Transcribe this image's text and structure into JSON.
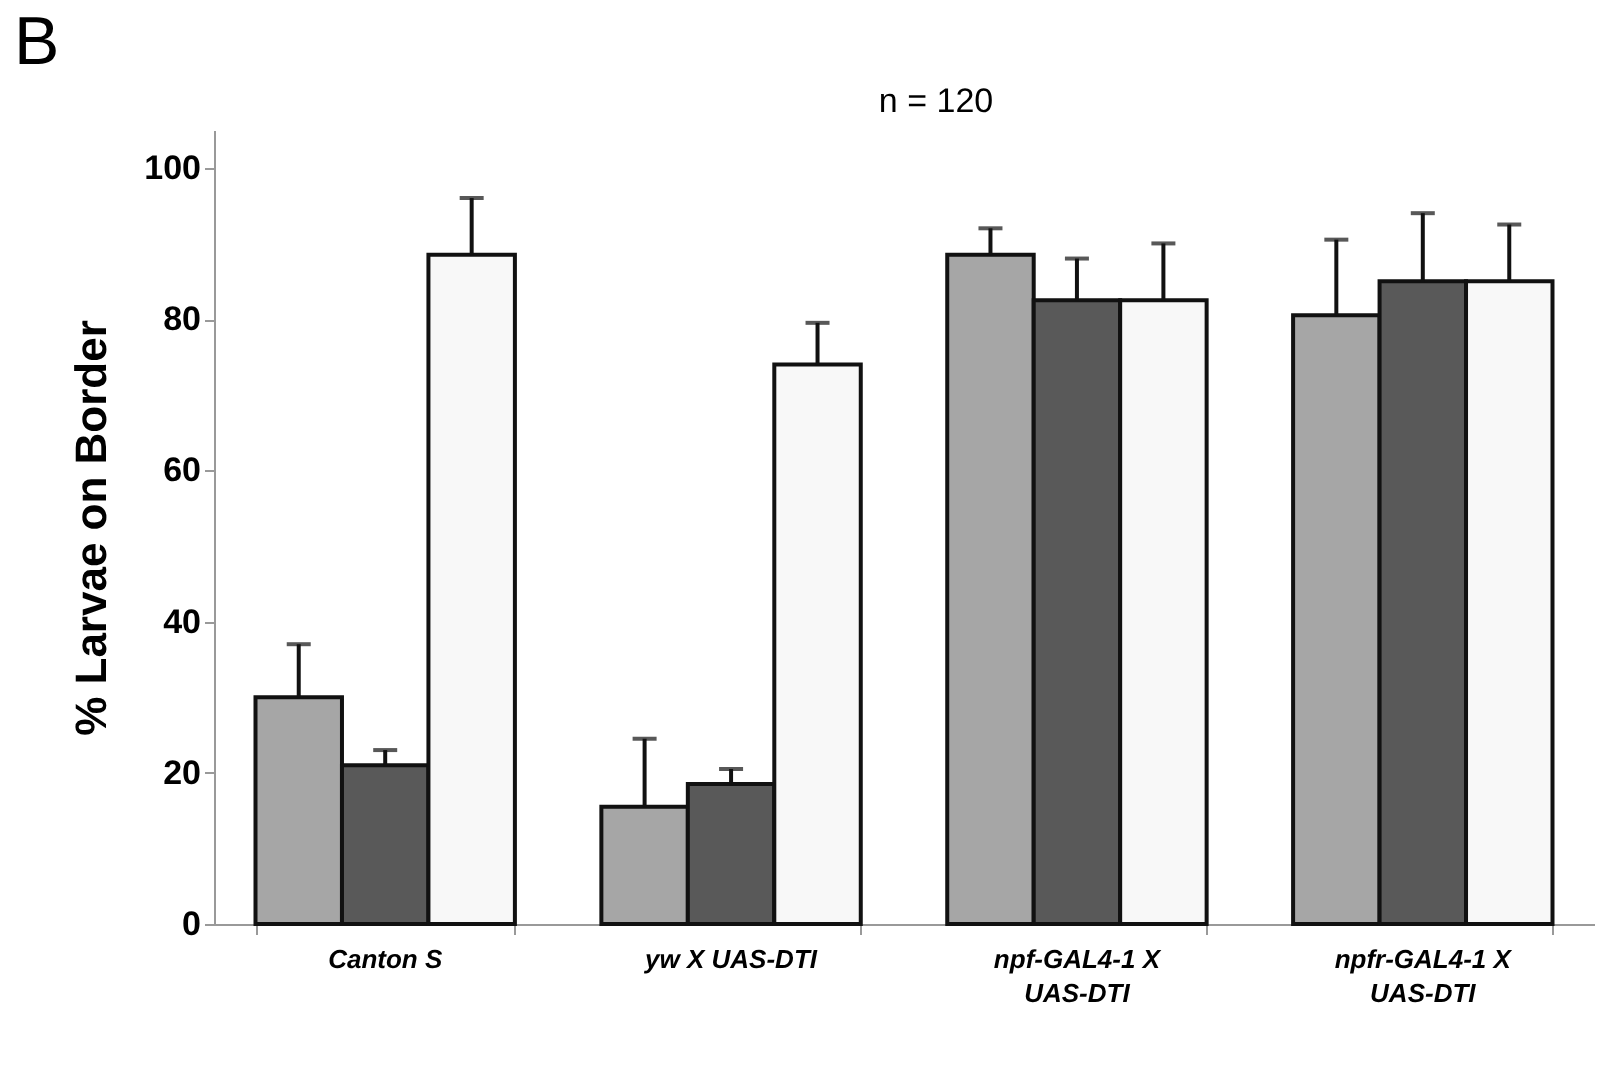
{
  "chart_data": {
    "type": "bar",
    "title": "n = 120",
    "ylabel": "% Larvae on Border",
    "annotations": [
      "B"
    ],
    "categories": [
      "Canton S",
      "yw X UAS-DTI",
      "npf-GAL4-1 X\nUAS-DTI",
      "npfr-GAL4-1 X\nUAS-DTI"
    ],
    "series": [
      {
        "color": "#a6a6a6",
        "values": [
          30,
          15.5,
          88.5,
          80.5
        ],
        "errors": [
          [
            30,
            37
          ],
          [
            15.5,
            24.5
          ],
          [
            88.5,
            92
          ],
          [
            80.5,
            90.5
          ]
        ]
      },
      {
        "color": "#595959",
        "values": [
          21,
          18.5,
          82.5,
          85
        ],
        "errors": [
          [
            21,
            23
          ],
          [
            18.5,
            20.5
          ],
          [
            82.5,
            88
          ],
          [
            85,
            94
          ]
        ]
      },
      {
        "color": "#f8f8f8",
        "values": [
          88.5,
          74,
          82.5,
          85
        ],
        "errors": [
          [
            88.5,
            96
          ],
          [
            74,
            79.5
          ],
          [
            82.5,
            90
          ],
          [
            85,
            92.5
          ]
        ]
      }
    ],
    "ylim": [
      0,
      105
    ],
    "yticks": [
      0,
      20,
      40,
      60,
      80,
      100
    ],
    "grid": false
  }
}
